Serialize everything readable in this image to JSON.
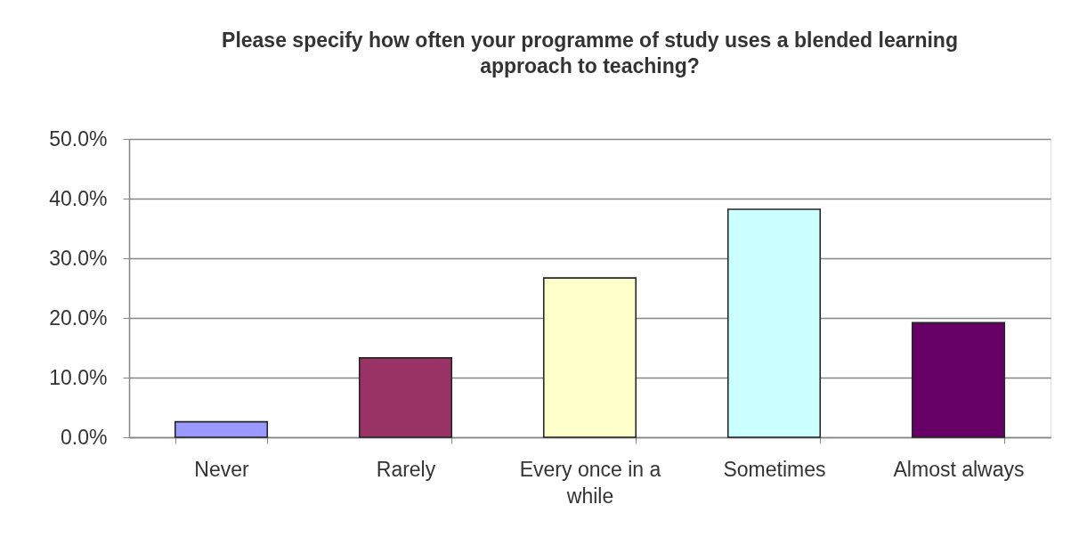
{
  "chart_data": {
    "type": "bar",
    "title": "Please specify how often your programme of study uses a blended learning approach to teaching?",
    "categories": [
      "Never",
      "Rarely",
      "Every once in a while",
      "Sometimes",
      "Almost always"
    ],
    "values": [
      2.6,
      13.3,
      26.7,
      38.2,
      19.2
    ],
    "colors": [
      "#9999ff",
      "#993366",
      "#ffffcc",
      "#ccffff",
      "#660066"
    ],
    "ylim": [
      0,
      50
    ],
    "yticks": [
      {
        "value": 0,
        "label": "0.0%"
      },
      {
        "value": 10,
        "label": "10.0%"
      },
      {
        "value": 20,
        "label": "20.0%"
      },
      {
        "value": 30,
        "label": "30.0%"
      },
      {
        "value": 40,
        "label": "40.0%"
      },
      {
        "value": 50,
        "label": "50.0%"
      }
    ],
    "grid": "y"
  }
}
